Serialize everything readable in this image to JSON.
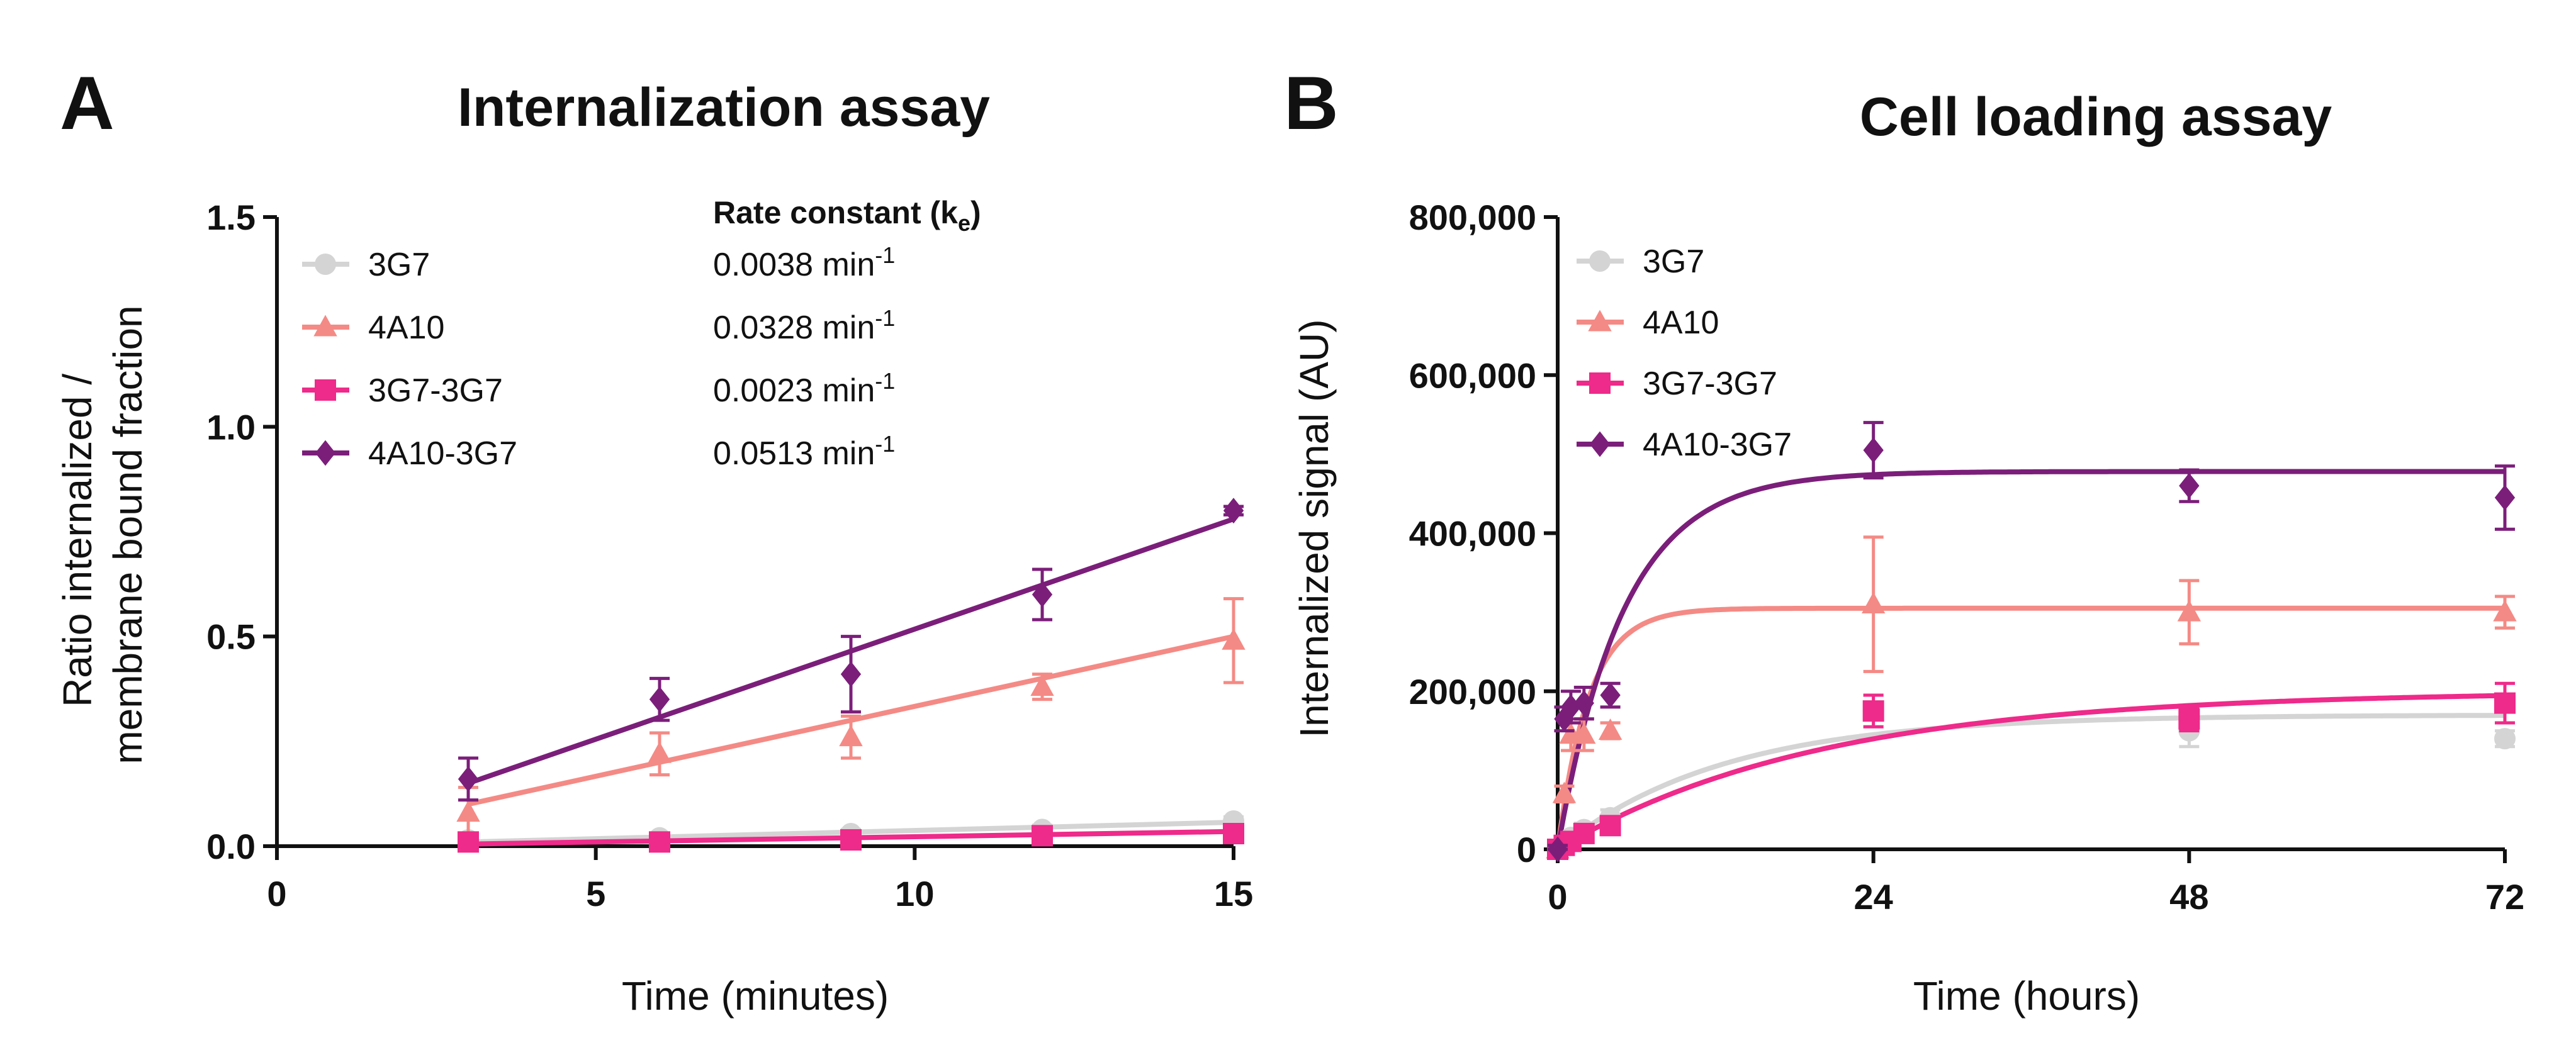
{
  "panels": [
    {
      "letter": "A",
      "title": "Internalization assay",
      "xlabel": "Time (minutes)",
      "ylabel": [
        "Ratio internalized /",
        "membrane bound fraction"
      ],
      "rate_header": {
        "main": "Rate constant (k",
        "sub": "e",
        "end": ")"
      },
      "rate_unit": {
        "base": "min",
        "sup": "-1"
      },
      "legend": [
        {
          "name": "3G7",
          "rate": "0.0038"
        },
        {
          "name": "4A10",
          "rate": "0.0328"
        },
        {
          "name": "3G7-3G7",
          "rate": "0.0023"
        },
        {
          "name": "4A10-3G7",
          "rate": "0.0513"
        }
      ]
    },
    {
      "letter": "B",
      "title": "Cell loading assay",
      "xlabel": "Time (hours)",
      "ylabel": [
        "Internalized signal (AU)"
      ],
      "legend": [
        {
          "name": "3G7"
        },
        {
          "name": "4A10"
        },
        {
          "name": "3G7-3G7"
        },
        {
          "name": "4A10-3G7"
        }
      ]
    }
  ],
  "series_styles": [
    {
      "name": "3G7",
      "color": "#d4d4d4",
      "marker": "circle"
    },
    {
      "name": "4A10",
      "color": "#f48a85",
      "marker": "triangle"
    },
    {
      "name": "3G7-3G7",
      "color": "#ee2a8a",
      "marker": "square"
    },
    {
      "name": "4A10-3G7",
      "color": "#7b1e7a",
      "marker": "diamond"
    }
  ],
  "chart_data": [
    {
      "type": "scatter",
      "title": "Internalization assay",
      "xlabel": "Time (minutes)",
      "ylabel": "Ratio internalized / membrane bound fraction",
      "xlim": [
        0,
        15
      ],
      "ylim": [
        0,
        1.5
      ],
      "xticks": [
        0,
        5,
        10,
        15
      ],
      "xtick_labels": [
        "0",
        "5",
        "10",
        "15"
      ],
      "yticks": [
        0,
        0.5,
        1.0,
        1.5
      ],
      "ytick_labels": [
        "0.0",
        "0.5",
        "1.0",
        "1.5"
      ],
      "grid": false,
      "legend_position": "top-left",
      "series": [
        {
          "name": "3G7",
          "x": [
            3,
            6,
            9,
            12,
            15
          ],
          "y": [
            0.015,
            0.02,
            0.03,
            0.04,
            0.06
          ],
          "err": [
            0.01,
            0.01,
            0.01,
            0.01,
            0.01
          ],
          "fit": [
            [
              3,
              0.01
            ],
            [
              15,
              0.057
            ]
          ]
        },
        {
          "name": "4A10",
          "x": [
            3,
            6,
            9,
            12,
            15
          ],
          "y": [
            0.08,
            0.22,
            0.26,
            0.38,
            0.49
          ],
          "err": [
            0.06,
            0.05,
            0.05,
            0.03,
            0.1
          ],
          "fit": [
            [
              3,
              0.1
            ],
            [
              15,
              0.5
            ]
          ]
        },
        {
          "name": "3G7-3G7",
          "x": [
            3,
            6,
            9,
            12,
            15
          ],
          "y": [
            0.01,
            0.01,
            0.015,
            0.025,
            0.03
          ],
          "err": [
            0.005,
            0.005,
            0.005,
            0.005,
            0.01
          ],
          "fit": [
            [
              3,
              0.005
            ],
            [
              15,
              0.035
            ]
          ]
        },
        {
          "name": "4A10-3G7",
          "x": [
            3,
            6,
            9,
            12,
            15
          ],
          "y": [
            0.16,
            0.35,
            0.41,
            0.6,
            0.8
          ],
          "err": [
            0.05,
            0.05,
            0.09,
            0.06,
            0.01
          ],
          "fit": [
            [
              3,
              0.15
            ],
            [
              15,
              0.78
            ]
          ]
        }
      ]
    },
    {
      "type": "scatter",
      "title": "Cell loading assay",
      "xlabel": "Time (hours)",
      "ylabel": "Internalized signal (AU)",
      "xlim": [
        0,
        72
      ],
      "ylim": [
        0,
        800000
      ],
      "xticks": [
        0,
        24,
        48,
        72
      ],
      "xtick_labels": [
        "0",
        "24",
        "48",
        "72"
      ],
      "yticks": [
        0,
        200000,
        400000,
        600000,
        800000
      ],
      "ytick_labels": [
        "0",
        "200,000",
        "400,000",
        "600,000",
        "800,000"
      ],
      "grid": false,
      "legend_position": "top-left",
      "series": [
        {
          "name": "3G7",
          "x": [
            0,
            0.5,
            1,
            2,
            4,
            24,
            48,
            72
          ],
          "y": [
            0,
            5000,
            15000,
            25000,
            40000,
            175000,
            150000,
            140000
          ],
          "err": [
            2000,
            3000,
            5000,
            8000,
            10000,
            20000,
            20000,
            10000
          ],
          "fit_type": "exp",
          "plateau": 170000,
          "k": 0.08
        },
        {
          "name": "4A10",
          "x": [
            0,
            0.5,
            1,
            2,
            4,
            24,
            48,
            72
          ],
          "y": [
            0,
            70000,
            145000,
            145000,
            150000,
            310000,
            300000,
            300000
          ],
          "err": [
            5000,
            10000,
            20000,
            20000,
            10000,
            85000,
            40000,
            20000
          ],
          "fit_type": "exp",
          "plateau": 305000,
          "k": 0.42
        },
        {
          "name": "3G7-3G7",
          "x": [
            0,
            0.5,
            1,
            2,
            4,
            24,
            48,
            72
          ],
          "y": [
            0,
            5000,
            10000,
            20000,
            30000,
            175000,
            165000,
            185000
          ],
          "err": [
            2000,
            3000,
            5000,
            5000,
            8000,
            20000,
            15000,
            25000
          ],
          "fit_type": "exp",
          "plateau": 200000,
          "k": 0.05
        },
        {
          "name": "4A10-3G7",
          "x": [
            0,
            0.5,
            1,
            2,
            4,
            24,
            48,
            72
          ],
          "y": [
            0,
            165000,
            180000,
            185000,
            195000,
            505000,
            460000,
            445000
          ],
          "err": [
            5000,
            15000,
            20000,
            20000,
            15000,
            35000,
            20000,
            40000
          ],
          "fit_type": "exp",
          "plateau": 478000,
          "k": 0.2
        }
      ]
    }
  ]
}
